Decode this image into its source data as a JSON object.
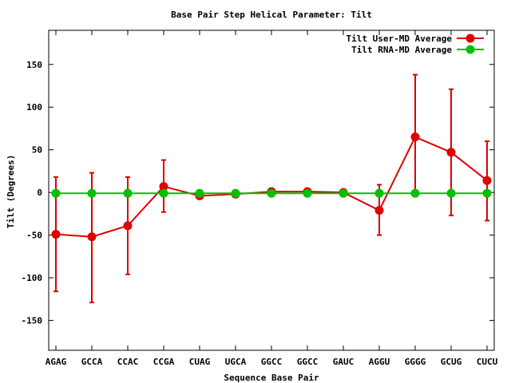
{
  "chart_data": {
    "type": "line",
    "title": "Base Pair Step Helical Parameter: Tilt",
    "xlabel": "Sequence Base Pair",
    "ylabel": "Tilt (Degrees)",
    "ylim": [
      -185,
      190
    ],
    "yticks": [
      -150,
      -100,
      -50,
      0,
      50,
      100,
      150
    ],
    "categories": [
      "AGAG",
      "GCCA",
      "CCAC",
      "CCGA",
      "CUAG",
      "UGCA",
      "GGCC",
      "GGCC",
      "GAUC",
      "AGGU",
      "GGGG",
      "GCUG",
      "CUCU"
    ],
    "legend_position": "top-right",
    "series": [
      {
        "name": "Tilt User-MD Average",
        "color": "#e00000",
        "values": [
          -49,
          -52,
          -39,
          7,
          -4,
          -2,
          1,
          1,
          0,
          -21,
          65,
          47,
          14
        ],
        "err_low": [
          -116,
          -129,
          -96,
          -23,
          -4,
          -2,
          1,
          1,
          0,
          -50,
          -2,
          -27,
          -33
        ],
        "err_high": [
          18,
          23,
          18,
          38,
          -4,
          -2,
          1,
          1,
          0,
          9,
          138,
          121,
          60
        ]
      },
      {
        "name": "Tilt RNA-MD Average",
        "color": "#00c000",
        "values": [
          -1,
          -1,
          -1,
          -1,
          -1,
          -1,
          -1,
          -1,
          -1,
          -1,
          -1,
          -1,
          -1
        ]
      }
    ]
  }
}
